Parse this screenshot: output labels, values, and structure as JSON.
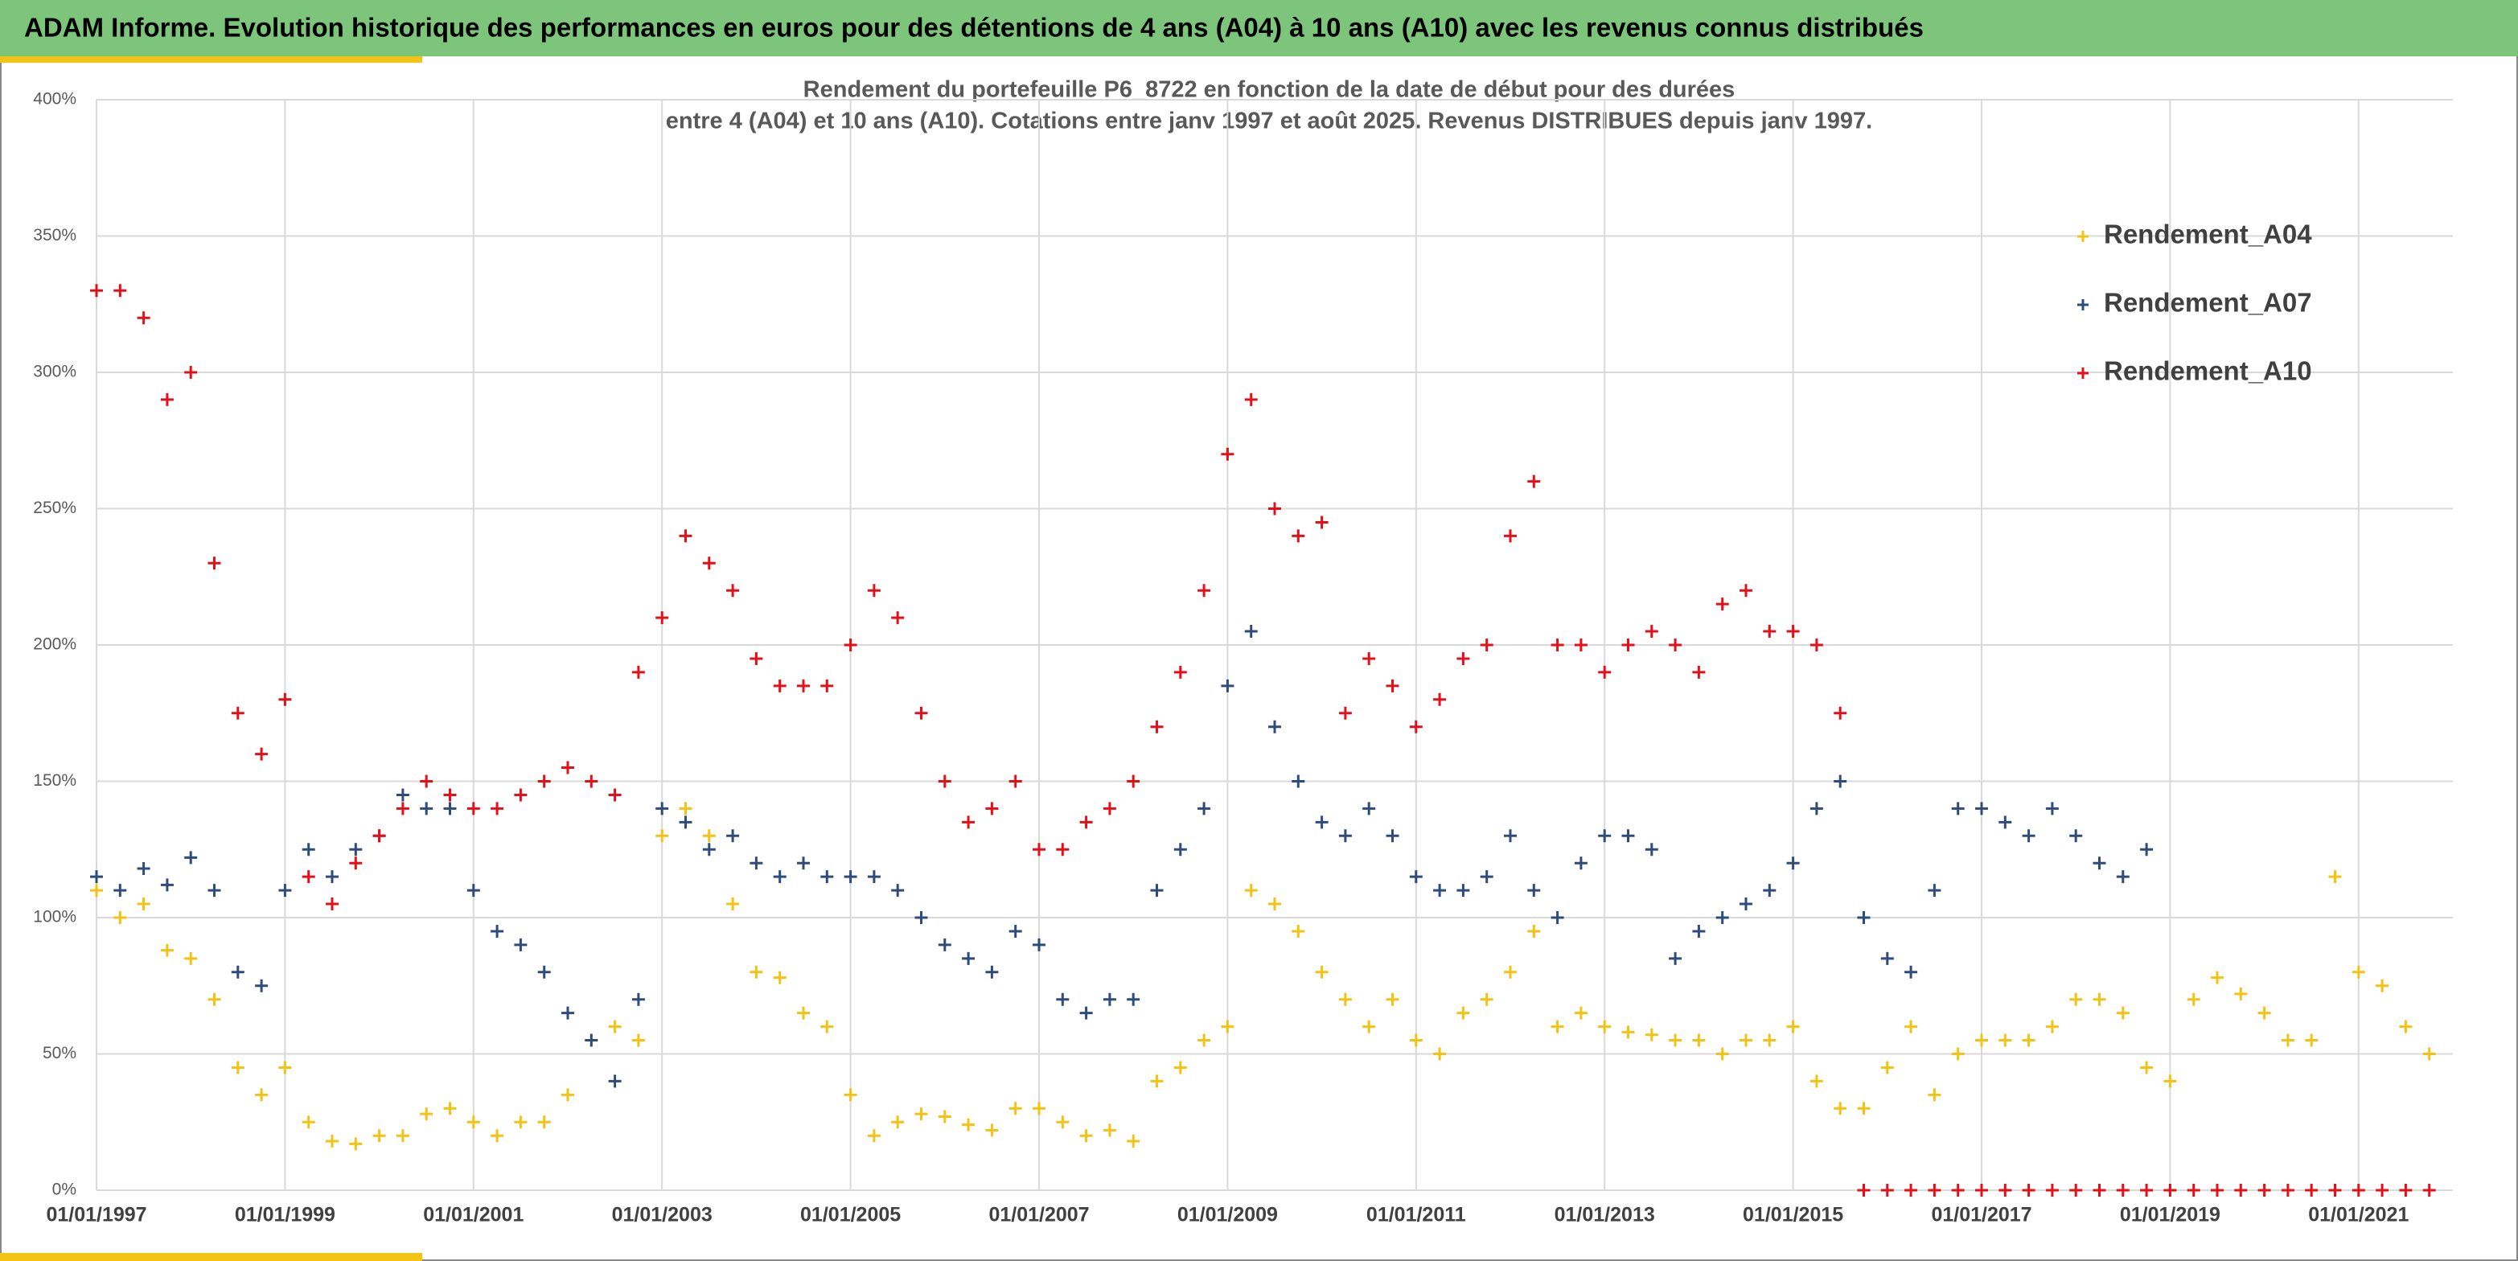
{
  "header": "ADAM Informe. Evolution historique des performances en euros pour des détentions de 4 ans (A04) à 10 ans (A10) avec les revenus connus distribués",
  "chart_data": {
    "type": "scatter",
    "title": [
      "Rendement du portefeuille P6_8722 en fonction de la date de début pour des durées",
      "entre 4 (A04) et 10 ans (A10). Cotations entre janv 1997 et août 2025. Revenus DISTRIBUES depuis janv 1997."
    ],
    "x": [
      "01/01/1997",
      "01/04/1997",
      "01/07/1997",
      "01/10/1997",
      "01/01/1998",
      "01/04/1998",
      "01/07/1998",
      "01/10/1998",
      "01/01/1999",
      "01/04/1999",
      "01/07/1999",
      "01/10/1999",
      "01/01/2000",
      "01/04/2000",
      "01/07/2000",
      "01/10/2000",
      "01/01/2001",
      "01/04/2001",
      "01/07/2001",
      "01/10/2001",
      "01/01/2002",
      "01/04/2002",
      "01/07/2002",
      "01/10/2002",
      "01/01/2003",
      "01/04/2003",
      "01/07/2003",
      "01/10/2003",
      "01/01/2004",
      "01/04/2004",
      "01/07/2004",
      "01/10/2004",
      "01/01/2005",
      "01/04/2005",
      "01/07/2005",
      "01/10/2005",
      "01/01/2006",
      "01/04/2006",
      "01/07/2006",
      "01/10/2006",
      "01/01/2007",
      "01/04/2007",
      "01/07/2007",
      "01/10/2007",
      "01/01/2008",
      "01/04/2008",
      "01/07/2008",
      "01/10/2008",
      "01/01/2009",
      "01/04/2009",
      "01/07/2009",
      "01/10/2009",
      "01/01/2010",
      "01/04/2010",
      "01/07/2010",
      "01/10/2010",
      "01/01/2011",
      "01/04/2011",
      "01/07/2011",
      "01/10/2011",
      "01/01/2012",
      "01/04/2012",
      "01/07/2012",
      "01/10/2012",
      "01/01/2013",
      "01/04/2013",
      "01/07/2013",
      "01/10/2013",
      "01/01/2014",
      "01/04/2014",
      "01/07/2014",
      "01/10/2014",
      "01/01/2015",
      "01/04/2015",
      "01/07/2015",
      "01/10/2015",
      "01/01/2016",
      "01/04/2016",
      "01/07/2016",
      "01/10/2016",
      "01/01/2017",
      "01/04/2017",
      "01/07/2017",
      "01/10/2017",
      "01/01/2018",
      "01/04/2018",
      "01/07/2018",
      "01/10/2018",
      "01/01/2019",
      "01/04/2019",
      "01/07/2019",
      "01/10/2019",
      "01/01/2020",
      "01/04/2020",
      "01/07/2020",
      "01/10/2020",
      "01/01/2021",
      "01/04/2021",
      "01/07/2021",
      "01/10/2021"
    ],
    "series": [
      {
        "name": "Rendement_A04",
        "color": "#f2c314",
        "values": [
          110,
          100,
          105,
          88,
          85,
          70,
          45,
          35,
          45,
          25,
          18,
          17,
          20,
          20,
          28,
          30,
          25,
          20,
          25,
          25,
          35,
          55,
          60,
          55,
          130,
          140,
          130,
          105,
          80,
          78,
          65,
          60,
          35,
          20,
          25,
          28,
          27,
          24,
          22,
          30,
          30,
          25,
          20,
          22,
          18,
          40,
          45,
          55,
          60,
          110,
          105,
          95,
          80,
          70,
          60,
          70,
          55,
          50,
          65,
          70,
          80,
          95,
          60,
          65,
          60,
          58,
          57,
          55,
          55,
          50,
          55,
          55,
          60,
          40,
          30,
          30,
          45,
          60,
          35,
          50,
          55,
          55,
          55,
          60,
          70,
          70,
          65,
          45,
          40,
          70,
          78,
          72,
          65,
          55,
          55,
          115,
          80,
          75,
          60,
          50
        ]
      },
      {
        "name": "Rendement_A07",
        "color": "#2f4b7c",
        "values": [
          115,
          110,
          118,
          112,
          122,
          110,
          80,
          75,
          110,
          125,
          115,
          125,
          130,
          145,
          140,
          140,
          110,
          95,
          90,
          80,
          65,
          55,
          40,
          70,
          140,
          135,
          125,
          130,
          120,
          115,
          120,
          115,
          115,
          115,
          110,
          100,
          90,
          85,
          80,
          95,
          90,
          70,
          65,
          70,
          70,
          110,
          125,
          140,
          185,
          205,
          170,
          150,
          135,
          130,
          140,
          130,
          115,
          110,
          110,
          115,
          130,
          110,
          100,
          120,
          130,
          130,
          125,
          85,
          95,
          100,
          105,
          110,
          120,
          140,
          150,
          100,
          85,
          80,
          110,
          140,
          140,
          135,
          130,
          140,
          130,
          120,
          115,
          125,
          null,
          null,
          null,
          null,
          null,
          null,
          null,
          null,
          null,
          null,
          null,
          null
        ]
      },
      {
        "name": "Rendement_A10",
        "color": "#e3101a",
        "values": [
          330,
          330,
          320,
          290,
          300,
          230,
          175,
          160,
          180,
          115,
          105,
          120,
          130,
          140,
          150,
          145,
          140,
          140,
          145,
          150,
          155,
          150,
          145,
          190,
          210,
          240,
          230,
          220,
          195,
          185,
          185,
          185,
          200,
          220,
          210,
          175,
          150,
          135,
          140,
          150,
          125,
          125,
          135,
          140,
          150,
          170,
          190,
          220,
          270,
          290,
          250,
          240,
          245,
          175,
          195,
          185,
          170,
          180,
          195,
          200,
          240,
          260,
          200,
          200,
          190,
          200,
          205,
          200,
          190,
          215,
          220,
          205,
          205,
          200,
          175,
          0,
          0,
          0,
          0,
          0,
          0,
          0,
          0,
          0,
          0,
          0,
          0,
          0,
          0,
          0,
          0,
          0,
          0,
          0,
          0,
          0,
          0,
          0,
          0,
          0
        ]
      }
    ],
    "xlim": [
      "01/01/1997",
      "01/01/2022"
    ],
    "xticks": [
      "01/01/1997",
      "01/01/1999",
      "01/01/2001",
      "01/01/2003",
      "01/01/2005",
      "01/01/2007",
      "01/01/2009",
      "01/01/2011",
      "01/01/2013",
      "01/01/2015",
      "01/01/2017",
      "01/01/2019",
      "01/01/2021"
    ],
    "ylim": [
      0,
      400
    ],
    "yticks": [
      {
        "value": 0,
        "label": "0%"
      },
      {
        "value": 50,
        "label": "50%"
      },
      {
        "value": 100,
        "label": "100%"
      },
      {
        "value": 150,
        "label": "150%"
      },
      {
        "value": 200,
        "label": "200%"
      },
      {
        "value": 250,
        "label": "250%"
      },
      {
        "value": 300,
        "label": "300%"
      },
      {
        "value": 350,
        "label": "350%"
      },
      {
        "value": 400,
        "label": "400%"
      }
    ],
    "grid": true,
    "legend": "upper right"
  }
}
